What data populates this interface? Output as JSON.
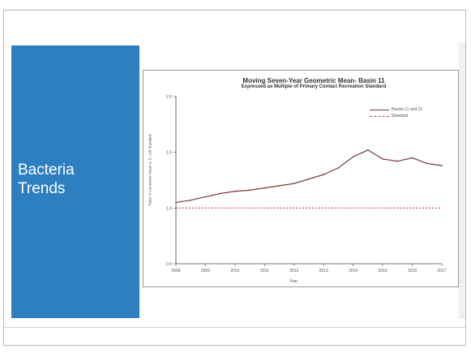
{
  "slide": {
    "title_lines": [
      "Bacteria",
      "Trends"
    ],
    "accent_color": "#2e7fc0"
  },
  "chart_data": {
    "type": "line",
    "title": "Moving Seven-Year Geometric Mean- Basin 11",
    "subtitle": "Expressed as Multiple of Primary Contact Recreation Standard",
    "xlabel": "Year",
    "ylabel": "Ratio of Geometric Mean to E. coli Standard",
    "xlim": [
      2008,
      2017
    ],
    "ylim": [
      0.5,
      2.0
    ],
    "x_ticks": [
      "2008",
      "2009",
      "2010",
      "2011",
      "2012",
      "2013",
      "2014",
      "2015",
      "2016",
      "2017"
    ],
    "y_ticks": [
      "0.5",
      "1.0",
      "1.5",
      "2.0"
    ],
    "legend": [
      "Basins 11 and 21",
      "Standard"
    ],
    "series": [
      {
        "name": "Basins 11 and 21",
        "color": "#7a3a3a",
        "x": [
          2008.0,
          2008.5,
          2009.0,
          2009.5,
          2010.0,
          2010.5,
          2011.0,
          2011.5,
          2012.0,
          2012.5,
          2013.0,
          2013.5,
          2014.0,
          2014.5,
          2015.0,
          2015.5,
          2016.0,
          2016.5,
          2017.0
        ],
        "y": [
          1.05,
          1.07,
          1.1,
          1.13,
          1.15,
          1.16,
          1.18,
          1.2,
          1.22,
          1.26,
          1.3,
          1.36,
          1.46,
          1.52,
          1.44,
          1.42,
          1.45,
          1.4,
          1.38
        ]
      },
      {
        "name": "Standard",
        "color": "#d04848",
        "style": "dashed",
        "x": [
          2008,
          2017
        ],
        "y": [
          1.0,
          1.0
        ]
      }
    ]
  }
}
